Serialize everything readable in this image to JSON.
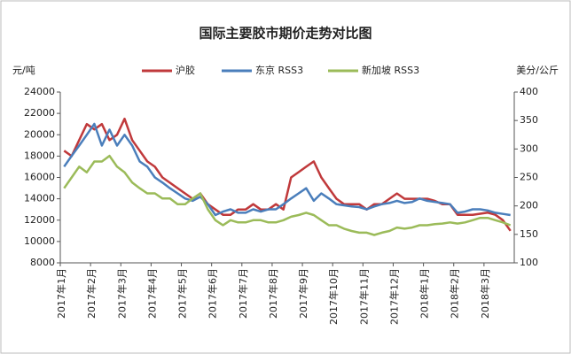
{
  "chart_data": {
    "type": "line",
    "title": "国际主要胶市期价走势对比图",
    "y_label": "元/吨",
    "y2_label": "美分/公斤",
    "categories": [
      "2017年1月",
      null,
      null,
      null,
      "2017年2月",
      null,
      null,
      null,
      "2017年3月",
      null,
      null,
      null,
      "2017年4月",
      null,
      null,
      null,
      "2017年5月",
      null,
      null,
      null,
      "2017年6月",
      null,
      null,
      null,
      "2017年7月",
      null,
      null,
      null,
      "2017年8月",
      null,
      null,
      null,
      "2017年9月",
      null,
      null,
      null,
      "2017年10月",
      null,
      null,
      null,
      "2017年11月",
      null,
      null,
      null,
      "2017年12月",
      null,
      null,
      null,
      "2018年1月",
      null,
      null,
      null,
      "2018年2月",
      null,
      null,
      null,
      "2018年3月",
      null,
      null,
      null
    ],
    "ylim": [
      8000,
      24000
    ],
    "yticks": [
      8000,
      10000,
      12000,
      14000,
      16000,
      18000,
      20000,
      22000,
      24000
    ],
    "y2lim": [
      100,
      400
    ],
    "y2ticks": [
      100,
      150,
      200,
      250,
      300,
      350,
      400
    ],
    "grid": false,
    "series": [
      {
        "name": "沪胶",
        "color": "#c0393b",
        "axis": "y",
        "values": [
          18500,
          18000,
          19500,
          21000,
          20500,
          21000,
          19500,
          20000,
          21500,
          19500,
          18500,
          17500,
          17000,
          16000,
          15500,
          15000,
          14500,
          14000,
          14500,
          13500,
          13000,
          12500,
          12500,
          13000,
          13000,
          13500,
          13000,
          13000,
          13500,
          13000,
          16000,
          16500,
          17000,
          17500,
          16000,
          15000,
          14000,
          13500,
          13500,
          13500,
          13000,
          13500,
          13500,
          14000,
          14500,
          14000,
          14000,
          14000,
          14000,
          13800,
          13500,
          13500,
          12500,
          12500,
          12500,
          12600,
          12700,
          12500,
          12000,
          11000
        ]
      },
      {
        "name": "东京 RSS3",
        "color": "#4a7ebb",
        "axis": "y2",
        "values": [
          269,
          288,
          306,
          325,
          344,
          306,
          334,
          306,
          325,
          306,
          278,
          269,
          250,
          241,
          231,
          222,
          213,
          209,
          216,
          203,
          184,
          190,
          194,
          188,
          188,
          194,
          190,
          194,
          194,
          203,
          213,
          222,
          231,
          209,
          222,
          213,
          203,
          201,
          199,
          198,
          194,
          199,
          203,
          205,
          209,
          205,
          207,
          213,
          209,
          207,
          205,
          203,
          188,
          190,
          194,
          194,
          192,
          188,
          186,
          184
        ]
      },
      {
        "name": "新加坡 RSS3",
        "color": "#9bbb59",
        "axis": "y2",
        "values": [
          231,
          250,
          269,
          259,
          278,
          278,
          288,
          269,
          259,
          241,
          231,
          222,
          222,
          213,
          213,
          203,
          203,
          213,
          222,
          194,
          175,
          166,
          175,
          171,
          171,
          175,
          175,
          171,
          171,
          175,
          181,
          184,
          188,
          184,
          175,
          166,
          166,
          160,
          156,
          153,
          153,
          149,
          153,
          156,
          162,
          160,
          162,
          166,
          166,
          168,
          169,
          171,
          169,
          171,
          175,
          179,
          179,
          175,
          171,
          166
        ]
      }
    ]
  }
}
